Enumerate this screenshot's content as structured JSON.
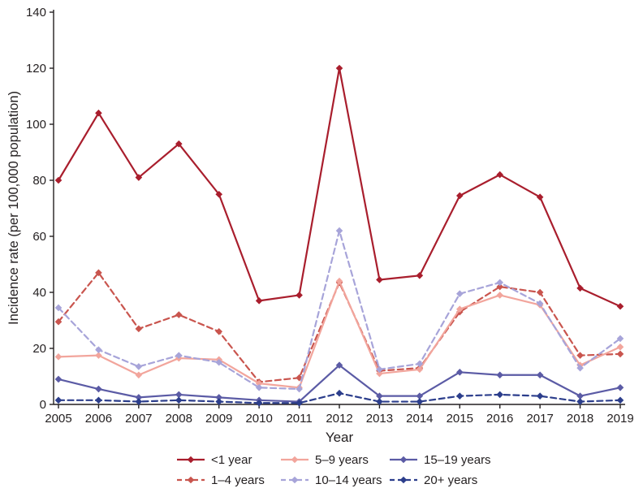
{
  "chart_data": {
    "type": "line",
    "title": "",
    "xlabel": "Year",
    "ylabel": "Incidence rate (per 100,000 population)",
    "ylim": [
      0,
      140
    ],
    "ytick_step": 20,
    "grid": false,
    "legend_position": "bottom",
    "axis_color": "#231f20",
    "categories": [
      "2005",
      "2006",
      "2007",
      "2008",
      "2009",
      "2010",
      "2011",
      "2012",
      "2013",
      "2014",
      "2015",
      "2016",
      "2017",
      "2018",
      "2019"
    ],
    "series": [
      {
        "name": "<1 year",
        "color": "#a91e2d",
        "dash": false,
        "values": [
          80,
          104,
          81,
          93,
          75,
          37,
          39,
          120,
          44.5,
          46,
          74.5,
          82,
          74,
          41.5,
          35
        ]
      },
      {
        "name": "1–4 years",
        "color": "#c9554e",
        "dash": true,
        "values": [
          29.5,
          47,
          27,
          32,
          26,
          8,
          9.5,
          43.5,
          12,
          13,
          33,
          42,
          40,
          17.5,
          18
        ]
      },
      {
        "name": "5–9 years",
        "color": "#f2a59c",
        "dash": false,
        "values": [
          17,
          17.5,
          10.5,
          16.5,
          16,
          7.5,
          6,
          44,
          11,
          12.5,
          34,
          39,
          35.5,
          14,
          20.5
        ]
      },
      {
        "name": "10–14 years",
        "color": "#a7a4d9",
        "dash": true,
        "values": [
          34.5,
          19.5,
          13.5,
          17.5,
          15,
          6,
          5.5,
          62,
          12.5,
          14.5,
          39.5,
          43.5,
          36,
          13,
          23.5
        ]
      },
      {
        "name": "15–19 years",
        "color": "#5b5ba5",
        "dash": false,
        "values": [
          9,
          5.5,
          2.5,
          3.5,
          2.5,
          1.5,
          1,
          14,
          3,
          3,
          11.5,
          10.5,
          10.5,
          3,
          6
        ]
      },
      {
        "name": "20+ years",
        "color": "#2c3e8c",
        "dash": true,
        "values": [
          1.5,
          1.5,
          1,
          1.5,
          1,
          0.5,
          0.5,
          4,
          1,
          1,
          3,
          3.5,
          3,
          1,
          1.5
        ]
      }
    ],
    "legend_rows": [
      [
        "<1 year",
        "5–9 years",
        "15–19 years"
      ],
      [
        "1–4 years",
        "10–14 years",
        "20+ years"
      ]
    ]
  }
}
